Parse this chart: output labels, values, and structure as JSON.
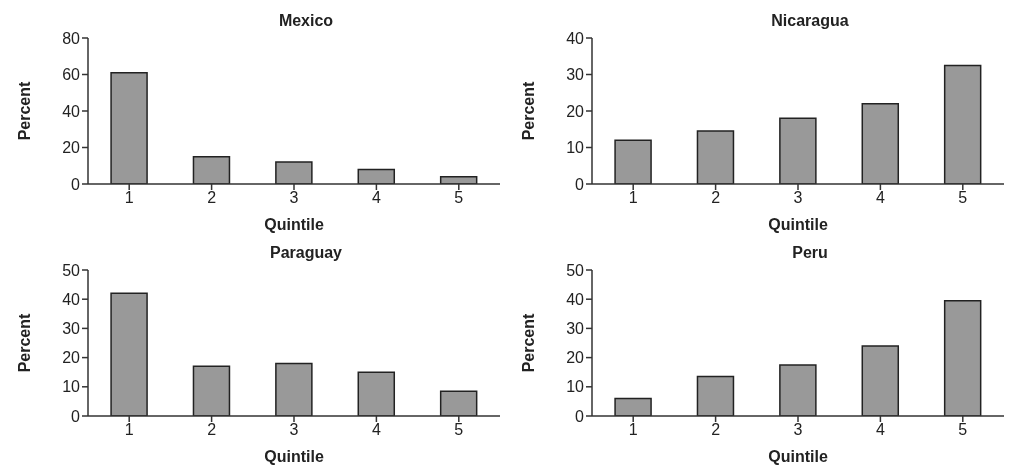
{
  "chart_data": [
    {
      "type": "bar",
      "title": "Mexico",
      "xlabel": "Quintile",
      "ylabel": "Percent",
      "categories": [
        "1",
        "2",
        "3",
        "4",
        "5"
      ],
      "values": [
        61,
        15,
        12,
        8,
        4
      ],
      "color": "#999999",
      "ylim": [
        0,
        80
      ],
      "yticks": [
        0,
        20,
        40,
        60,
        80
      ]
    },
    {
      "type": "bar",
      "title": "Nicaragua",
      "xlabel": "Quintile",
      "ylabel": "Percent",
      "categories": [
        "1",
        "2",
        "3",
        "4",
        "5"
      ],
      "values": [
        12,
        14.5,
        18,
        22,
        32.5
      ],
      "color": "#999999",
      "ylim": [
        0,
        40
      ],
      "yticks": [
        0,
        10,
        20,
        30,
        40
      ]
    },
    {
      "type": "bar",
      "title": "Paraguay",
      "xlabel": "Quintile",
      "ylabel": "Percent",
      "categories": [
        "1",
        "2",
        "3",
        "4",
        "5"
      ],
      "values": [
        42,
        17,
        18,
        15,
        8.5
      ],
      "color": "#999999",
      "ylim": [
        0,
        50
      ],
      "yticks": [
        0,
        10,
        20,
        30,
        40,
        50
      ]
    },
    {
      "type": "bar",
      "title": "Peru",
      "xlabel": "Quintile",
      "ylabel": "Percent",
      "categories": [
        "1",
        "2",
        "3",
        "4",
        "5"
      ],
      "values": [
        6,
        13.5,
        17.5,
        24,
        39.5
      ],
      "color": "#999999",
      "ylim": [
        0,
        50
      ],
      "yticks": [
        0,
        10,
        20,
        30,
        40,
        50
      ]
    }
  ]
}
